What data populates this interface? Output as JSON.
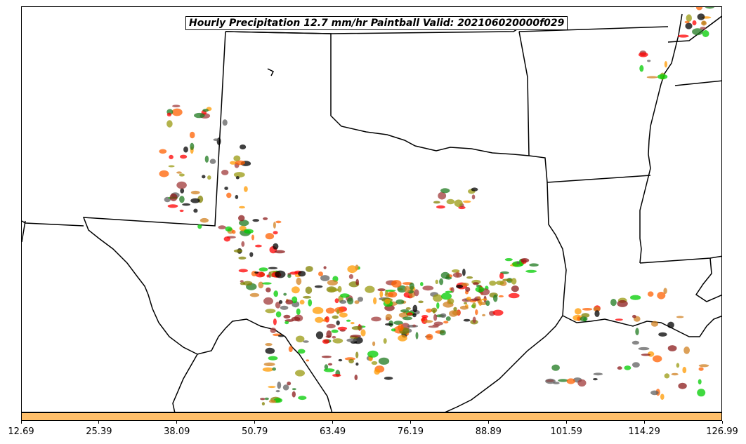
{
  "title": "Hourly Precipitation 12.7 mm/hr Paintball Valid: 202106020000f029",
  "colorbar": {
    "color": "#ffbf6a",
    "tick_labels": [
      "12.69",
      "25.39",
      "38.09",
      "50.79",
      "63.49",
      "76.19",
      "88.89",
      "101.59",
      "114.29",
      "126.99"
    ]
  },
  "member_colors": [
    "#ff0000",
    "#ff6000",
    "#ff9900",
    "#8b1a1a",
    "#a0393a",
    "#000000",
    "#00cc00",
    "#1f7a1f",
    "#808000",
    "#9a9a10",
    "#606060",
    "#d08020"
  ]
}
